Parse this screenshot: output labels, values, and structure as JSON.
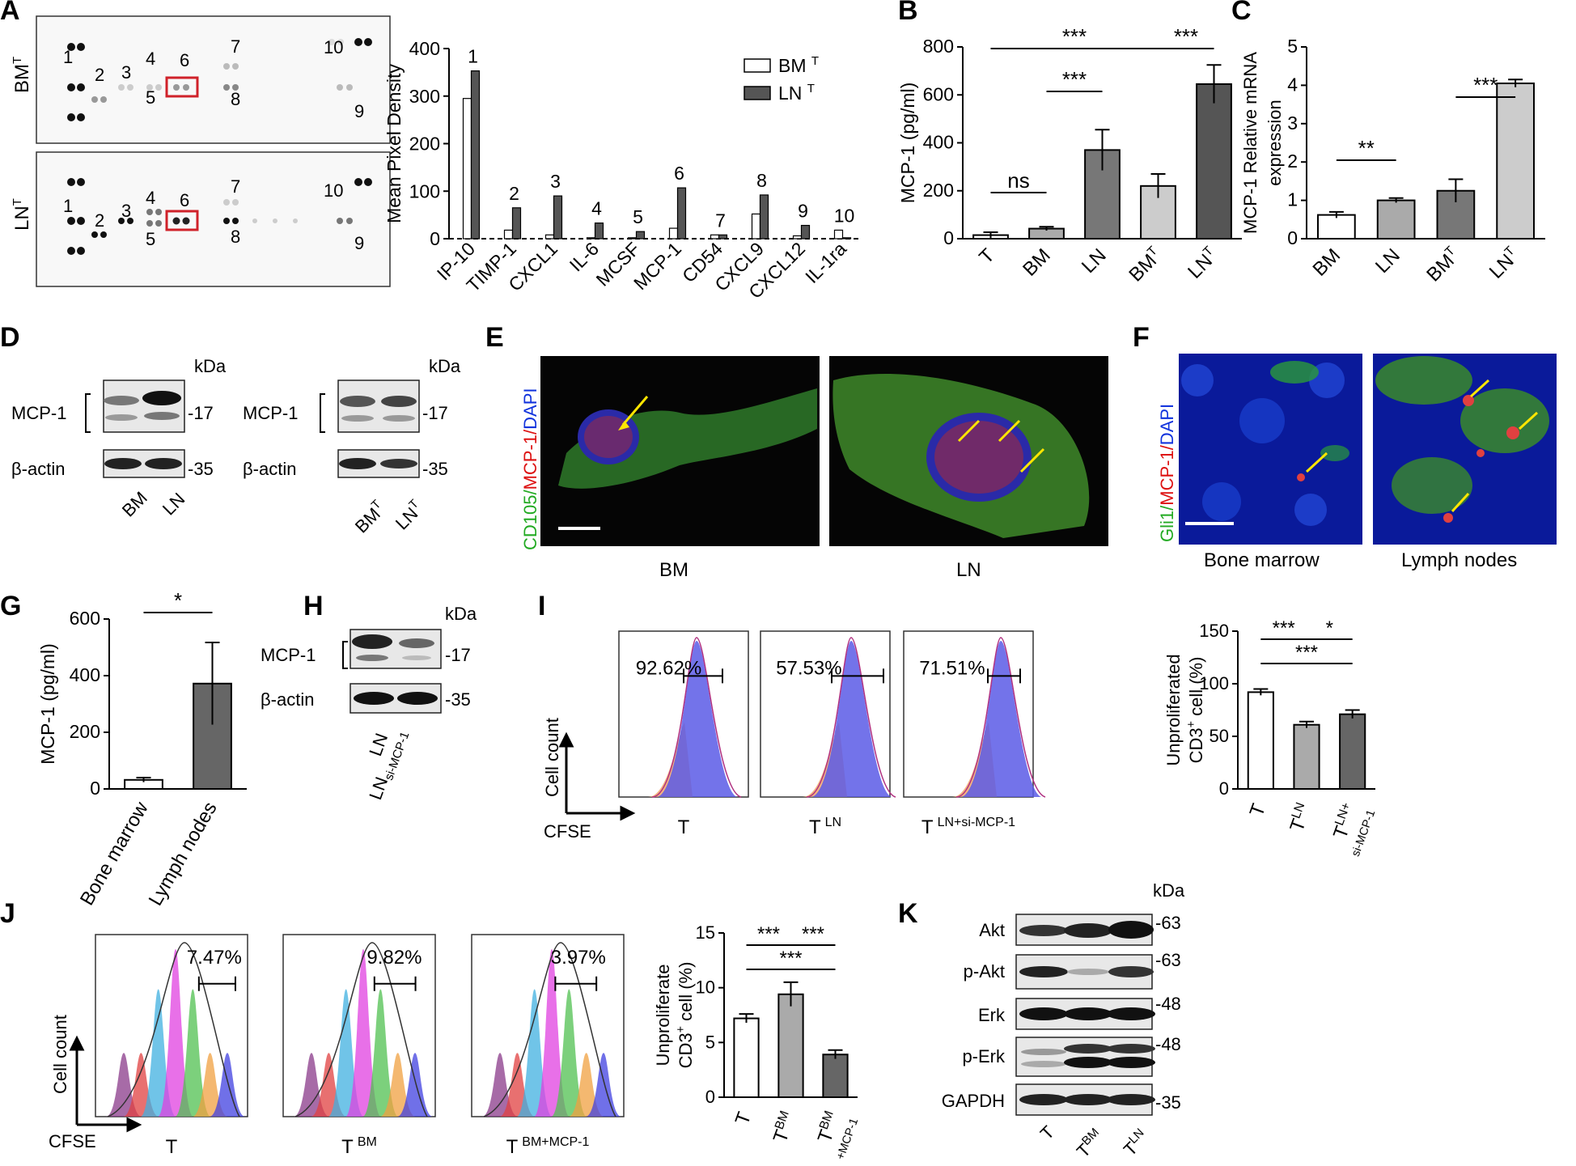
{
  "panels": {
    "A": {
      "letter": "A",
      "array_rows": [
        "BM",
        "LN"
      ],
      "array_row_sup": "T",
      "spot_numbers": [
        "1",
        "2",
        "3",
        "4",
        "5",
        "6",
        "7",
        "8",
        "9",
        "10"
      ]
    },
    "B": {
      "letter": "B"
    },
    "C": {
      "letter": "C"
    },
    "D": {
      "letter": "D",
      "kda": "kDa",
      "rows": [
        "MCP-1",
        "β-actin"
      ],
      "markers": [
        "-17",
        "-35"
      ],
      "lanes_left": [
        "BM",
        "LN"
      ],
      "lanes_right": [
        "BM",
        "LN"
      ],
      "lane_sup": "T"
    },
    "E": {
      "letter": "E",
      "stain": [
        "CD105/",
        "MCP-1/",
        "DAPI"
      ],
      "stain_colors": [
        "#22aa22",
        "#dd1111",
        "#1133dd"
      ],
      "labels": [
        "BM",
        "LN"
      ]
    },
    "F": {
      "letter": "F",
      "stain": [
        "Gli1/",
        "MCP-1/",
        "DAPI"
      ],
      "stain_colors": [
        "#22aa22",
        "#dd1111",
        "#1133dd"
      ],
      "labels": [
        "Bone marrow",
        "Lymph nodes"
      ]
    },
    "G": {
      "letter": "G"
    },
    "H": {
      "letter": "H",
      "kda": "kDa",
      "rows": [
        "MCP-1",
        "β-actin"
      ],
      "markers": [
        "-17",
        "-35"
      ],
      "lanes": [
        "LN",
        "LN"
      ],
      "lane2_sup": "si-MCP-1"
    },
    "I": {
      "letter": "I",
      "ylabel": "Cell count",
      "xlabel": "CFSE",
      "hist_pct": [
        "92.62%",
        "57.53%",
        "71.51%"
      ],
      "hist_labels": [
        "T",
        "T",
        "T"
      ],
      "hist_sups": [
        "",
        "LN",
        "LN+si-MCP-1"
      ]
    },
    "J": {
      "letter": "J",
      "ylabel": "Cell count",
      "xlabel": "CFSE",
      "hist_pct": [
        "7.47%",
        "9.82%",
        "3.97%"
      ],
      "hist_labels": [
        "T",
        "T",
        "T"
      ],
      "hist_sups": [
        "",
        "BM",
        "BM+MCP-1"
      ]
    },
    "K": {
      "letter": "K",
      "kda": "kDa",
      "rows": [
        "Akt",
        "p-Akt",
        "Erk",
        "p-Erk",
        "GAPDH"
      ],
      "markers": [
        "-63",
        "-63",
        "-48",
        "-48",
        "-35"
      ],
      "lanes": [
        "T",
        "T",
        "T"
      ],
      "lane_sups": [
        "",
        "BM",
        "LN"
      ]
    }
  },
  "chart_data": [
    {
      "id": "A-bar",
      "type": "bar",
      "ylabel": "Mean Pixel Density",
      "ylim": [
        0,
        400
      ],
      "yticks": [
        0,
        100,
        200,
        300,
        400
      ],
      "categories": [
        "IP-10",
        "TIMP-1",
        "CXCL1",
        "IL-6",
        "MCSF",
        "MCP-1",
        "CD54",
        "CXCL9",
        "CXCL12",
        "IL-1ra"
      ],
      "bar_numbers": [
        "1",
        "2",
        "3",
        "4",
        "5",
        "6",
        "7",
        "8",
        "9",
        "10"
      ],
      "series": [
        {
          "name": "BM",
          "sup": "T",
          "color": "#ffffff",
          "values": [
            295,
            18,
            8,
            2,
            2,
            22,
            8,
            52,
            6,
            18
          ]
        },
        {
          "name": "LN",
          "sup": "T",
          "color": "#555555",
          "values": [
            353,
            65,
            90,
            33,
            15,
            107,
            8,
            92,
            28,
            2
          ]
        }
      ],
      "legend": "top-right"
    },
    {
      "id": "B",
      "type": "bar",
      "ylabel": "MCP-1 (pg/ml)",
      "ylim": [
        0,
        800
      ],
      "yticks": [
        0,
        200,
        400,
        600,
        800
      ],
      "categories": [
        "T",
        "BM",
        "LN",
        "BM",
        "LN"
      ],
      "category_sups": [
        "",
        "",
        "",
        "T",
        "T"
      ],
      "values": [
        15,
        42,
        370,
        220,
        645
      ],
      "errors": [
        12,
        8,
        85,
        50,
        80
      ],
      "colors": [
        "#ffffff",
        "#aaaaaa",
        "#777777",
        "#cccccc",
        "#555555"
      ],
      "significance": [
        {
          "from": 0,
          "to": 1,
          "text": "ns"
        },
        {
          "from": 0,
          "to": 3,
          "text": "***"
        },
        {
          "from": 1,
          "to": 2,
          "text": "***"
        },
        {
          "from": 3,
          "to": 4,
          "text": "***"
        }
      ]
    },
    {
      "id": "C",
      "type": "bar",
      "ylabel": [
        "MCP-1 Relative mRNA",
        "expression"
      ],
      "ylim": [
        0,
        5
      ],
      "yticks": [
        0,
        1,
        2,
        3,
        4,
        5
      ],
      "categories": [
        "BM",
        "LN",
        "BM",
        "LN"
      ],
      "category_sups": [
        "",
        "",
        "T",
        "T"
      ],
      "values": [
        0.62,
        1.0,
        1.25,
        4.05
      ],
      "errors": [
        0.08,
        0.06,
        0.3,
        0.1
      ],
      "colors": [
        "#ffffff",
        "#aaaaaa",
        "#777777",
        "#cccccc"
      ],
      "significance": [
        {
          "from": 0,
          "to": 1,
          "text": "**"
        },
        {
          "from": 2,
          "to": 3,
          "text": "***"
        }
      ]
    },
    {
      "id": "G",
      "type": "bar",
      "ylabel": "MCP-1 (pg/ml)",
      "ylim": [
        0,
        600
      ],
      "yticks": [
        0,
        200,
        400,
        600
      ],
      "categories": [
        "Bone marrow",
        "Lymph nodes"
      ],
      "values": [
        32,
        372
      ],
      "errors": [
        8,
        145
      ],
      "colors": [
        "#ffffff",
        "#666666"
      ],
      "significance": [
        {
          "from": 0,
          "to": 1,
          "text": "*"
        }
      ]
    },
    {
      "id": "I-bar",
      "type": "bar",
      "ylabel": [
        "Unproliferated",
        "CD3 cell (%)"
      ],
      "ylabel_sup": "+",
      "ylim": [
        0,
        150
      ],
      "yticks": [
        0,
        50,
        100,
        150
      ],
      "categories": [
        "T",
        "T",
        "T"
      ],
      "category_sups": [
        "",
        "LN",
        "LN+"
      ],
      "category_sub2": [
        "",
        "",
        "si-MCP-1"
      ],
      "values": [
        92,
        61,
        71
      ],
      "errors": [
        3,
        3,
        4
      ],
      "colors": [
        "#ffffff",
        "#aaaaaa",
        "#666666"
      ],
      "significance": [
        {
          "from": 0,
          "to": 1,
          "text": "***"
        },
        {
          "from": 1,
          "to": 2,
          "text": "*"
        },
        {
          "from": 0,
          "to": 2,
          "text": "***"
        }
      ]
    },
    {
      "id": "J-bar",
      "type": "bar",
      "ylabel": [
        "Unproliferate",
        "CD3 cell (%)"
      ],
      "ylabel_sup": "+",
      "ylim": [
        0,
        15
      ],
      "yticks": [
        0,
        5,
        10,
        15
      ],
      "categories": [
        "T",
        "T",
        "T"
      ],
      "category_sups": [
        "",
        "BM",
        "BM"
      ],
      "category_sub2": [
        "",
        "",
        "+MCP-1"
      ],
      "values": [
        7.2,
        9.4,
        3.9
      ],
      "errors": [
        0.4,
        1.1,
        0.4
      ],
      "colors": [
        "#ffffff",
        "#aaaaaa",
        "#666666"
      ],
      "significance": [
        {
          "from": 0,
          "to": 1,
          "text": "***"
        },
        {
          "from": 1,
          "to": 2,
          "text": "***"
        },
        {
          "from": 0,
          "to": 2,
          "text": "***"
        }
      ]
    }
  ]
}
